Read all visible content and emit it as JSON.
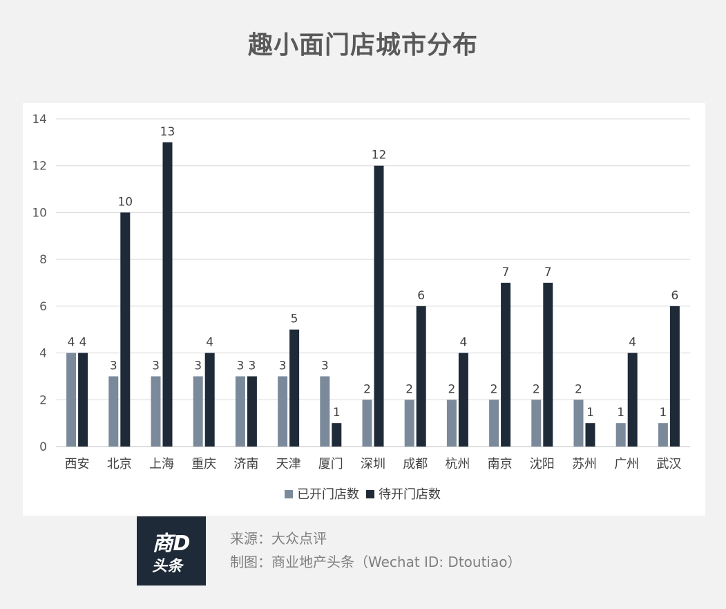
{
  "page": {
    "title": "趣小面门店城市分布"
  },
  "chart_data": {
    "type": "bar",
    "categories": [
      "西安",
      "北京",
      "上海",
      "重庆",
      "济南",
      "天津",
      "厦门",
      "深圳",
      "成都",
      "杭州",
      "南京",
      "沈阳",
      "苏州",
      "广州",
      "武汉"
    ],
    "series": [
      {
        "name": "已开门店数",
        "values": [
          4,
          3,
          3,
          3,
          3,
          3,
          3,
          2,
          2,
          2,
          2,
          2,
          2,
          1,
          1
        ],
        "color": "#7b8a9b"
      },
      {
        "name": "待开门店数",
        "values": [
          4,
          10,
          13,
          4,
          3,
          5,
          1,
          12,
          6,
          4,
          7,
          7,
          1,
          4,
          6
        ],
        "color": "#1f2a38"
      }
    ],
    "ylim": [
      0,
      14
    ],
    "yticks": [
      0,
      2,
      4,
      6,
      8,
      10,
      12,
      14
    ],
    "grid": true,
    "legend_position": "bottom",
    "data_labels": true,
    "xlabel": "",
    "ylabel": ""
  },
  "logo": {
    "line1": "商D",
    "line2": "头条"
  },
  "footer": {
    "source": "来源：大众点评",
    "credit": "制图：商业地产头条（Wechat ID: Dtoutiao）"
  }
}
